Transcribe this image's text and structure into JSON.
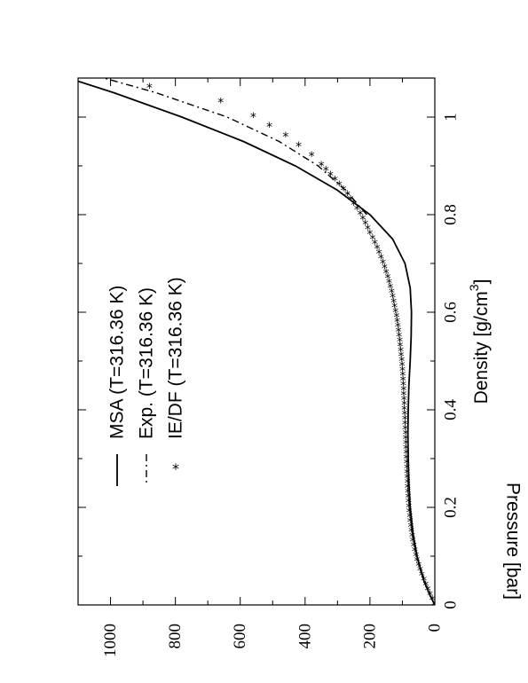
{
  "chart_data": {
    "type": "line",
    "orientation": "rotated-90-ccw",
    "xlabel_main": "Density [g/cm",
    "xlabel_sup": "3",
    "xlabel_close": "]",
    "ylabel": "Pressure [bar]",
    "xlim": [
      0,
      1.08
    ],
    "ylim": [
      0,
      1100
    ],
    "x_ticks": [
      0,
      0.2,
      0.4,
      0.6,
      0.8,
      1.0
    ],
    "x_tick_labels": [
      "0",
      "0.2",
      "0.4",
      "0.6",
      "0.8",
      "1"
    ],
    "y_ticks": [
      0,
      200,
      400,
      600,
      800,
      1000
    ],
    "y_tick_labels": [
      "0",
      "200",
      "400",
      "600",
      "800",
      "1000"
    ],
    "grid": false,
    "legend_position": "top-left",
    "series": [
      {
        "name": "MSA (T=316.36 K)",
        "style": "solid",
        "x": [
          0.0,
          0.02,
          0.05,
          0.1,
          0.15,
          0.2,
          0.25,
          0.3,
          0.35,
          0.4,
          0.45,
          0.5,
          0.55,
          0.6,
          0.65,
          0.7,
          0.75,
          0.8,
          0.85,
          0.9,
          0.95,
          1.0,
          1.05,
          1.08
        ],
        "y": [
          0,
          15,
          34,
          55,
          68,
          76,
          80,
          82,
          83,
          82,
          80,
          76,
          73,
          72,
          76,
          92,
          130,
          200,
          300,
          430,
          590,
          780,
          990,
          1130
        ]
      },
      {
        "name": "Exp. (T=316.36 K)",
        "style": "dashdot",
        "x": [
          0.8,
          0.85,
          0.9,
          0.95,
          1.0,
          1.05,
          1.08
        ],
        "y": [
          210,
          275,
          360,
          480,
          640,
          860,
          1020
        ]
      },
      {
        "name": "IE/DF (T=316.36 K)",
        "style": "star",
        "x": [
          0.0,
          0.01,
          0.02,
          0.03,
          0.04,
          0.05,
          0.06,
          0.07,
          0.08,
          0.09,
          0.1,
          0.11,
          0.12,
          0.13,
          0.14,
          0.15,
          0.16,
          0.17,
          0.18,
          0.19,
          0.2,
          0.21,
          0.22,
          0.23,
          0.24,
          0.25,
          0.26,
          0.27,
          0.28,
          0.29,
          0.3,
          0.31,
          0.32,
          0.33,
          0.34,
          0.35,
          0.36,
          0.37,
          0.38,
          0.39,
          0.4,
          0.41,
          0.42,
          0.43,
          0.44,
          0.45,
          0.46,
          0.47,
          0.48,
          0.49,
          0.5,
          0.51,
          0.52,
          0.53,
          0.54,
          0.55,
          0.56,
          0.57,
          0.58,
          0.59,
          0.6,
          0.61,
          0.62,
          0.63,
          0.64,
          0.65,
          0.66,
          0.67,
          0.68,
          0.69,
          0.7,
          0.71,
          0.72,
          0.73,
          0.74,
          0.75,
          0.76,
          0.77,
          0.78,
          0.79,
          0.8,
          0.81,
          0.82,
          0.83,
          0.84,
          0.85,
          0.86,
          0.87,
          0.88,
          0.89,
          0.9,
          0.92,
          0.94,
          0.96,
          0.98,
          1.0,
          1.03,
          1.06
        ],
        "y": [
          0,
          8,
          15,
          22,
          28,
          34,
          40,
          45,
          50,
          55,
          58,
          62,
          65,
          68,
          70,
          72,
          74,
          76,
          77,
          79,
          80,
          81,
          82,
          83,
          84,
          84,
          85,
          86,
          86,
          87,
          88,
          88,
          89,
          89,
          90,
          90,
          91,
          92,
          92,
          93,
          94,
          94,
          95,
          96,
          96,
          97,
          98,
          99,
          100,
          101,
          102,
          104,
          105,
          107,
          108,
          110,
          112,
          114,
          116,
          118,
          121,
          124,
          127,
          130,
          133,
          137,
          141,
          145,
          150,
          155,
          160,
          166,
          172,
          178,
          185,
          192,
          200,
          207,
          214,
          222,
          230,
          240,
          250,
          260,
          270,
          282,
          295,
          308,
          322,
          336,
          350,
          380,
          420,
          460,
          510,
          560,
          660,
          880
        ]
      }
    ]
  }
}
